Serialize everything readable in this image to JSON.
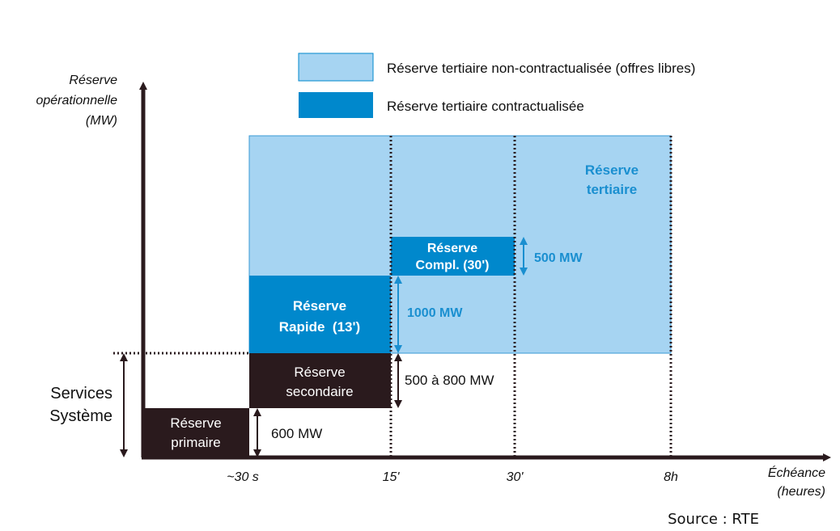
{
  "legend": {
    "items": [
      {
        "label": "Réserve tertiaire non-contractualisée (offres libres)",
        "color": "#a6d4f2"
      },
      {
        "label": "Réserve tertiaire contractualisée",
        "color": "#0088cc"
      }
    ]
  },
  "axes": {
    "y_label": [
      "Réserve",
      "opérationnelle",
      "(MW)"
    ],
    "x_label": [
      "Échéance",
      "(heures)"
    ],
    "x_ticks": [
      "~30 s",
      "15'",
      "30'",
      "8h"
    ]
  },
  "side_label": [
    "Services",
    "Système"
  ],
  "blocks": {
    "tertiary": [
      "Réserve",
      "tertiaire"
    ],
    "compl": [
      "Réserve",
      "Compl. (30')"
    ],
    "rapid": [
      "Réserve",
      "Rapide  (13')"
    ],
    "secondary": [
      "Réserve",
      "secondaire"
    ],
    "primary": [
      "Réserve",
      "primaire"
    ]
  },
  "dimensions": {
    "compl_mw": "500 MW",
    "rapid_mw": "1000 MW",
    "secondary_mw": "500 à 800 MW",
    "primary_mw": "600 MW"
  },
  "source": "Source : RTE",
  "colors": {
    "light_blue": "#a6d4f2",
    "blue": "#0088cc",
    "dark": "#2a1a1d",
    "label_blue": "#1a8fd0"
  }
}
